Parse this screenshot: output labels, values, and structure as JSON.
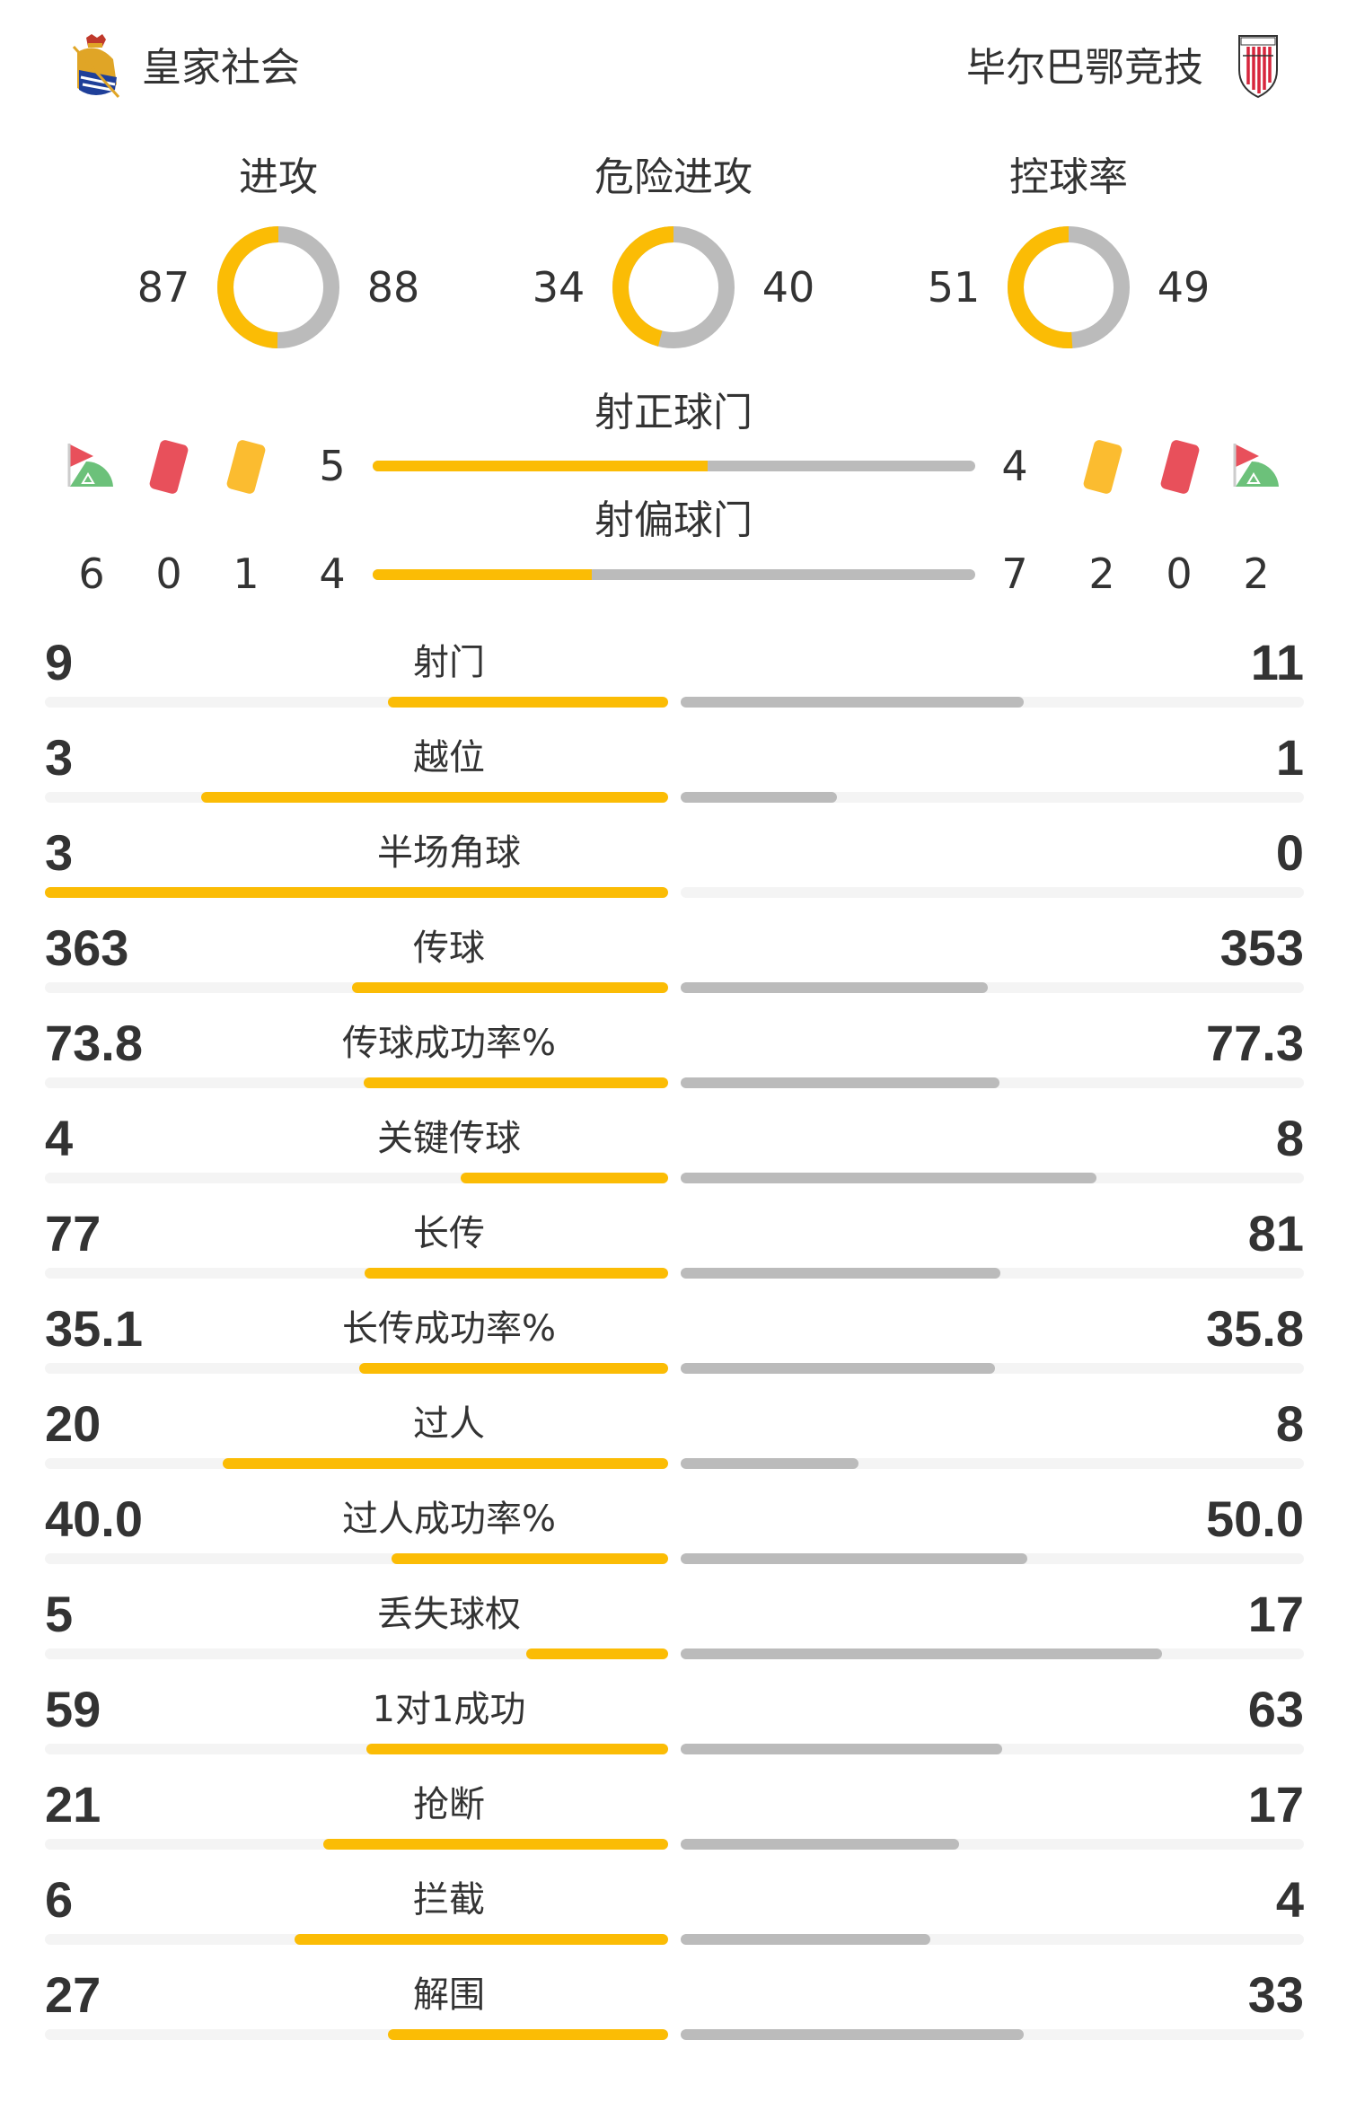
{
  "header": {
    "home_team": "皇家社会",
    "away_team": "毕尔巴鄂竞技",
    "home_logo_icon": "real-sociedad-crest",
    "away_logo_icon": "athletic-club-crest"
  },
  "colors": {
    "home": "#FBBC05",
    "away": "#BBBBBB",
    "track": "#F4F4F4",
    "red_card": "#E8505B",
    "yellow_card": "#FBBC30",
    "corner_green": "#6CC17A"
  },
  "donuts": [
    {
      "label": "进攻",
      "home": "87",
      "away": "88"
    },
    {
      "label": "危险进攻",
      "home": "34",
      "away": "40"
    },
    {
      "label": "控球率",
      "home": "51",
      "away": "49"
    }
  ],
  "shots_on_target": {
    "label": "射正球门",
    "home": "5",
    "away": "4"
  },
  "shots_off_target": {
    "label": "射偏球门",
    "home": "4",
    "away": "7"
  },
  "events": {
    "home": {
      "corners": "6",
      "red_cards": "0",
      "yellow_cards": "1"
    },
    "away": {
      "yellow_cards": "2",
      "red_cards": "0",
      "corners": "2"
    }
  },
  "stats": [
    {
      "label": "射门",
      "home": "9",
      "away": "11"
    },
    {
      "label": "越位",
      "home": "3",
      "away": "1"
    },
    {
      "label": "半场角球",
      "home": "3",
      "away": "0"
    },
    {
      "label": "传球",
      "home": "363",
      "away": "353"
    },
    {
      "label": "传球成功率%",
      "home": "73.8",
      "away": "77.3"
    },
    {
      "label": "关键传球",
      "home": "4",
      "away": "8"
    },
    {
      "label": "长传",
      "home": "77",
      "away": "81"
    },
    {
      "label": "长传成功率%",
      "home": "35.1",
      "away": "35.8"
    },
    {
      "label": "过人",
      "home": "20",
      "away": "8"
    },
    {
      "label": "过人成功率%",
      "home": "40.0",
      "away": "50.0"
    },
    {
      "label": "丢失球权",
      "home": "5",
      "away": "17"
    },
    {
      "label": "1对1成功",
      "home": "59",
      "away": "63"
    },
    {
      "label": "抢断",
      "home": "21",
      "away": "17"
    },
    {
      "label": "拦截",
      "home": "6",
      "away": "4"
    },
    {
      "label": "解围",
      "home": "27",
      "away": "33"
    }
  ]
}
